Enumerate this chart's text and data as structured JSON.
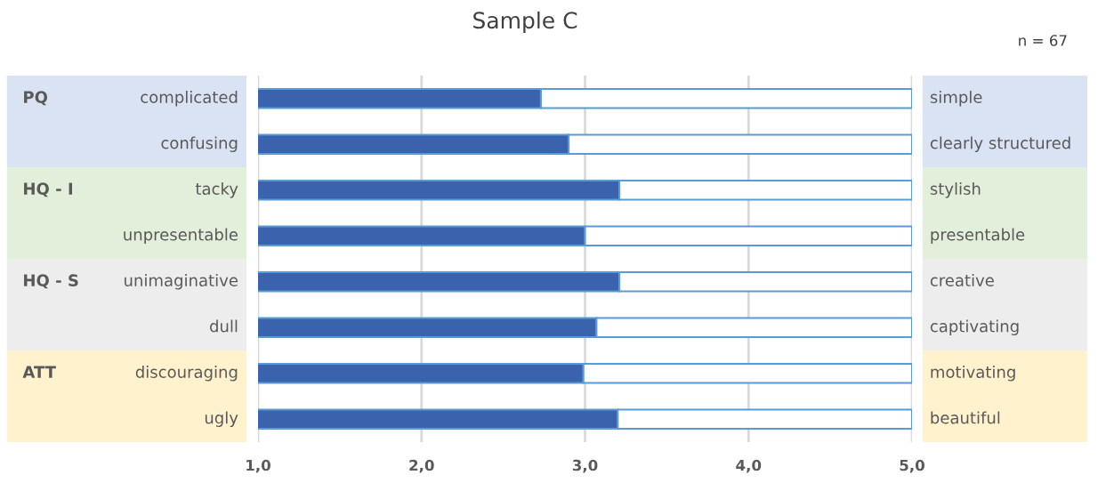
{
  "chart_data": {
    "type": "bar",
    "orientation": "horizontal",
    "stacked": true,
    "title": "Sample C",
    "categories": [
      "complicated",
      "confusing",
      "tacky",
      "unpresentable",
      "unimaginative",
      "dull",
      "discouraging",
      "ugly"
    ],
    "y2_categories": [
      "simple",
      "clearly structured",
      "stylish",
      "presentable",
      "creative",
      "captivating",
      "motivating",
      "beautiful"
    ],
    "series": [
      {
        "color": "#3a62ad",
        "values": [
          2.73,
          2.9,
          3.21,
          3.0,
          3.21,
          3.07,
          2.99,
          3.2
        ]
      },
      {
        "color": "#ffffff",
        "values": [
          2.27,
          2.1,
          1.79,
          2.0,
          1.79,
          1.93,
          2.01,
          1.8
        ]
      }
    ],
    "xlim": [
      1,
      5
    ],
    "xticks": [
      {
        "value": 1,
        "label": "1,0"
      },
      {
        "value": 2,
        "label": "2,0"
      },
      {
        "value": 3,
        "label": "3,0"
      },
      {
        "value": 4,
        "label": "4,0"
      },
      {
        "value": 5,
        "label": "5,0"
      }
    ],
    "grid": "x",
    "annotations": [
      "PQ",
      "HQ - I",
      "HQ - S",
      "ATT",
      "n = 67"
    ]
  }
}
